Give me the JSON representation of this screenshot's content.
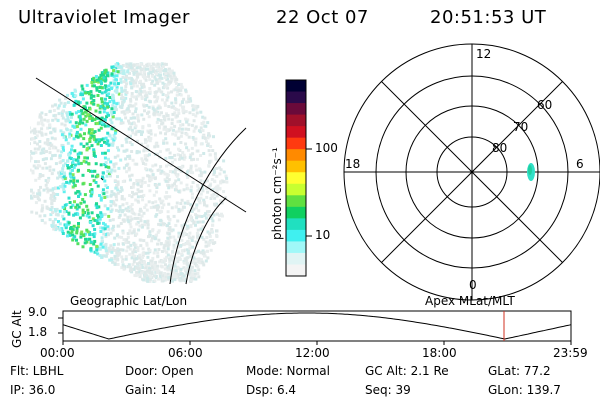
{
  "header": {
    "instrument": "Ultraviolet Imager",
    "date": "22 Oct 07",
    "time": "20:51:53 UT"
  },
  "colorbar": {
    "label": "photon cm⁻²s⁻¹",
    "ticks": [
      "100",
      "10"
    ],
    "colors": [
      "#000033",
      "#2a0a4a",
      "#6a0a3a",
      "#a0102a",
      "#d01020",
      "#ff3a10",
      "#ff8a00",
      "#ffc000",
      "#ffff30",
      "#c8ff30",
      "#60e040",
      "#10d060",
      "#20e0c0",
      "#40f0f0",
      "#a0f8f8",
      "#e0f4f4",
      "#f4f4f4"
    ]
  },
  "polar_plot": {
    "mlt_labels": [
      "12",
      "18",
      "6",
      "0"
    ],
    "mlat_labels": [
      "60",
      "70",
      "80"
    ]
  },
  "timeline": {
    "left_title": "Geographic Lat/Lon",
    "right_title": "Apex MLat/MLT",
    "ylabel": "GC Alt",
    "y_ticks": [
      "9.0",
      "1.8"
    ],
    "x_ticks": [
      "00:00",
      "06:00",
      "12:00",
      "18:00",
      "23:59"
    ],
    "marker_color": "#d03020"
  },
  "info": {
    "flt": "Flt: LBHL",
    "ip": "IP: 36.0",
    "door": "Door: Open",
    "gain": "Gain: 14",
    "mode": "Mode: Normal",
    "dsp": "Dsp:     6.4",
    "gc_alt": "GC Alt: 2.1 Re",
    "seq": "Seq: 39",
    "glat": "GLat:  77.2",
    "glon": "GLon: 139.7"
  }
}
